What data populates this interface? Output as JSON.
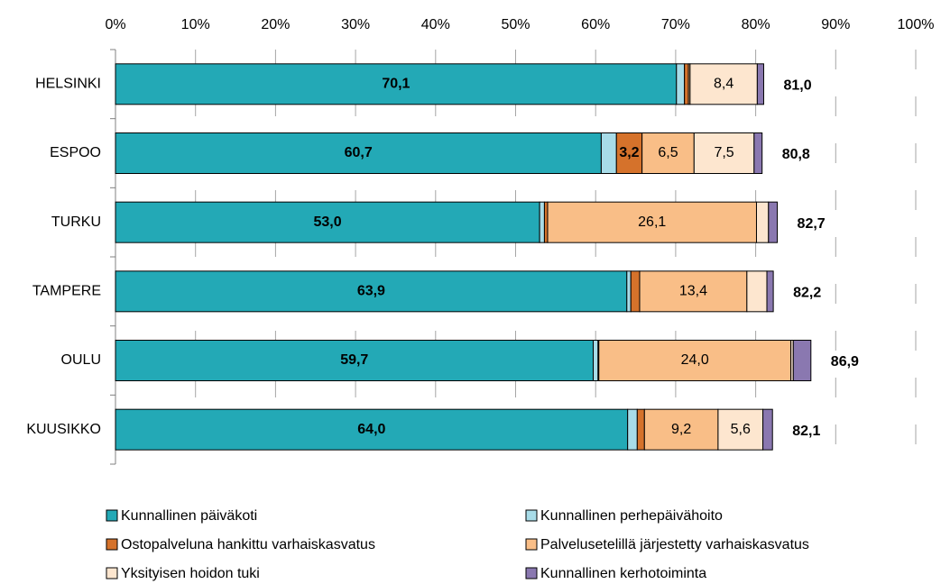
{
  "chart_data": {
    "type": "stacked-bar-horizontal",
    "categories": [
      "HELSINKI",
      "ESPOO",
      "TURKU",
      "TAMPERE",
      "OULU",
      "KUUSIKKO"
    ],
    "series": [
      {
        "name": "Kunnallinen päiväkoti",
        "color": "#23a9b6",
        "values": [
          70.1,
          60.7,
          53.0,
          63.9,
          59.7,
          64.0
        ],
        "value_labels": [
          "70,1",
          "60,7",
          "53,0",
          "63,9",
          "59,7",
          "64,0"
        ]
      },
      {
        "name": "Kunnallinen perhepäivähoito",
        "color": "#a8dce8",
        "values": [
          1.0,
          1.9,
          0.6,
          0.5,
          0.6,
          1.2
        ],
        "value_labels": [
          null,
          null,
          null,
          null,
          null,
          null
        ]
      },
      {
        "name": "Ostopalveluna hankittu varhaiskasvatus",
        "color": "#d5722b",
        "values": [
          0.5,
          3.2,
          0.4,
          1.1,
          0.1,
          0.9
        ],
        "value_labels": [
          null,
          "3,2",
          null,
          null,
          null,
          null
        ]
      },
      {
        "name": "Palvelusetelillä järjestetty varhaiskasvatus",
        "color": "#f9be87",
        "values": [
          0.2,
          6.5,
          26.1,
          13.4,
          24.0,
          9.2
        ],
        "value_labels": [
          null,
          "6,5",
          "26,1",
          "13,4",
          "24,0",
          "9,2"
        ]
      },
      {
        "name": "Yksityisen hoidon tuki",
        "color": "#fde6cf",
        "values": [
          8.4,
          7.5,
          1.5,
          2.5,
          0.3,
          5.6
        ],
        "value_labels": [
          "8,4",
          "7,5",
          null,
          null,
          null,
          "5,6"
        ]
      },
      {
        "name": "Kunnallinen kerhotoiminta",
        "color": "#8a78b0",
        "values": [
          0.8,
          1.0,
          1.1,
          0.8,
          2.2,
          1.2
        ],
        "value_labels": [
          null,
          null,
          null,
          null,
          null,
          null
        ]
      }
    ],
    "totals": [
      81.0,
      80.8,
      82.7,
      82.2,
      86.9,
      82.1
    ],
    "total_labels": [
      "81,0",
      "80,8",
      "82,7",
      "82,2",
      "86,9",
      "82,1"
    ],
    "xlim": [
      0,
      100
    ],
    "xticks": [
      {
        "value": 0,
        "label": "0%"
      },
      {
        "value": 10,
        "label": "10%"
      },
      {
        "value": 20,
        "label": "20%"
      },
      {
        "value": 30,
        "label": "30%"
      },
      {
        "value": 40,
        "label": "40%"
      },
      {
        "value": 50,
        "label": "50%"
      },
      {
        "value": 60,
        "label": "60%"
      },
      {
        "value": 70,
        "label": "70%"
      },
      {
        "value": 80,
        "label": "80%"
      },
      {
        "value": 90,
        "label": "90%"
      },
      {
        "value": 100,
        "label": "100%"
      }
    ],
    "grid": true
  }
}
